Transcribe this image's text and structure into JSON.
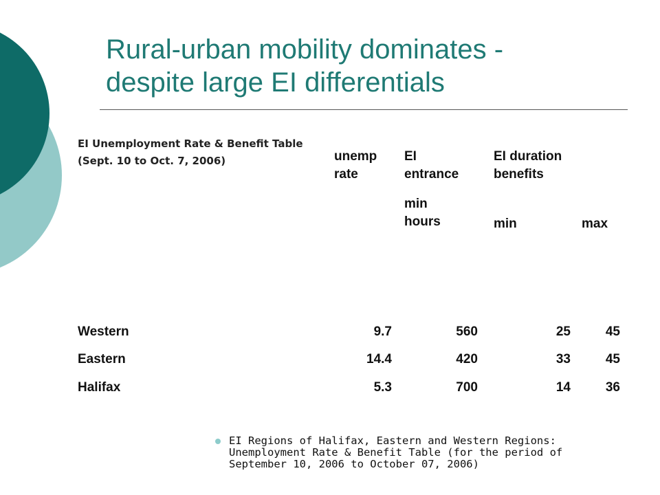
{
  "slide": {
    "title_lines": [
      "Rural-urban mobility dominates -",
      "despite large EI differentials"
    ]
  },
  "table": {
    "caption": "EI Unemployment Rate & Benefit Table",
    "period": "(Sept. 10 to Oct. 7, 2006)",
    "headers": {
      "unemp_rate": [
        "unemp",
        "rate"
      ],
      "ei_entrance": [
        "EI",
        "entrance"
      ],
      "ei_duration": [
        "EI duration",
        "benefits"
      ],
      "min_hours": [
        "min",
        "hours"
      ],
      "min": "min",
      "max": "max"
    },
    "rows": [
      {
        "region": "Western",
        "unemp_rate": "9.7",
        "min_hours": "560",
        "min": "25",
        "max": "45"
      },
      {
        "region": "Eastern",
        "unemp_rate": "14.4",
        "min_hours": "420",
        "min": "33",
        "max": "45"
      },
      {
        "region": "Halifax",
        "unemp_rate": "5.3",
        "min_hours": "700",
        "min": "14",
        "max": "36"
      }
    ]
  },
  "bullets": [
    [
      "EI Regions of Halifax, Eastern and Western Regions:",
      "Unemployment Rate & Benefit Table (for the period of",
      "September 10, 2006 to October 07, 2006)"
    ]
  ],
  "colors": {
    "title": "#1f7a74",
    "deco_dark": "#0e6b67",
    "deco_light": "#93c9c8"
  }
}
